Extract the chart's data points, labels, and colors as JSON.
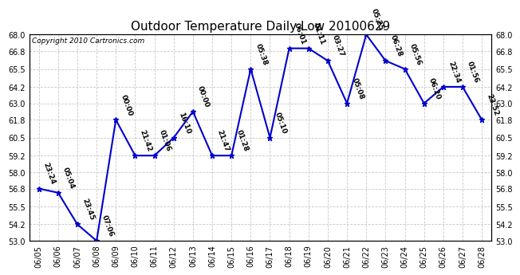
{
  "title": "Outdoor Temperature Daily Low 20100629",
  "copyright": "Copyright 2010 Cartronics.com",
  "dates": [
    "06/05",
    "06/06",
    "06/07",
    "06/08",
    "06/09",
    "06/10",
    "06/11",
    "06/12",
    "06/13",
    "06/14",
    "06/15",
    "06/16",
    "06/17",
    "06/18",
    "06/19",
    "06/20",
    "06/21",
    "06/22",
    "06/23",
    "06/24",
    "06/25",
    "06/26",
    "06/27",
    "06/28"
  ],
  "temps": [
    56.8,
    56.5,
    54.2,
    53.0,
    61.8,
    59.2,
    59.2,
    60.5,
    62.4,
    59.2,
    59.2,
    65.5,
    60.5,
    67.0,
    67.0,
    66.1,
    63.0,
    68.0,
    66.1,
    65.5,
    63.0,
    64.2,
    64.2,
    61.8
  ],
  "times": [
    "23:24",
    "05:04",
    "23:45",
    "07:06",
    "00:00",
    "21:42",
    "01:06",
    "16:10",
    "00:00",
    "21:47",
    "01:28",
    "05:38",
    "05:10",
    "06:01",
    "01:11",
    "03:27",
    "05:08",
    "05:25",
    "06:28",
    "05:56",
    "06:20",
    "22:34",
    "01:56",
    "23:52"
  ],
  "ylim": [
    53.0,
    68.0
  ],
  "yticks": [
    53.0,
    54.2,
    55.5,
    56.8,
    58.0,
    59.2,
    60.5,
    61.8,
    63.0,
    64.2,
    65.5,
    66.8,
    68.0
  ],
  "line_color": "#0000cc",
  "marker": "*",
  "bg_color": "#ffffff",
  "grid_color": "#c8c8c8",
  "title_fontsize": 11,
  "tick_fontsize": 7,
  "annot_fontsize": 6.5,
  "copyright_fontsize": 6.5
}
